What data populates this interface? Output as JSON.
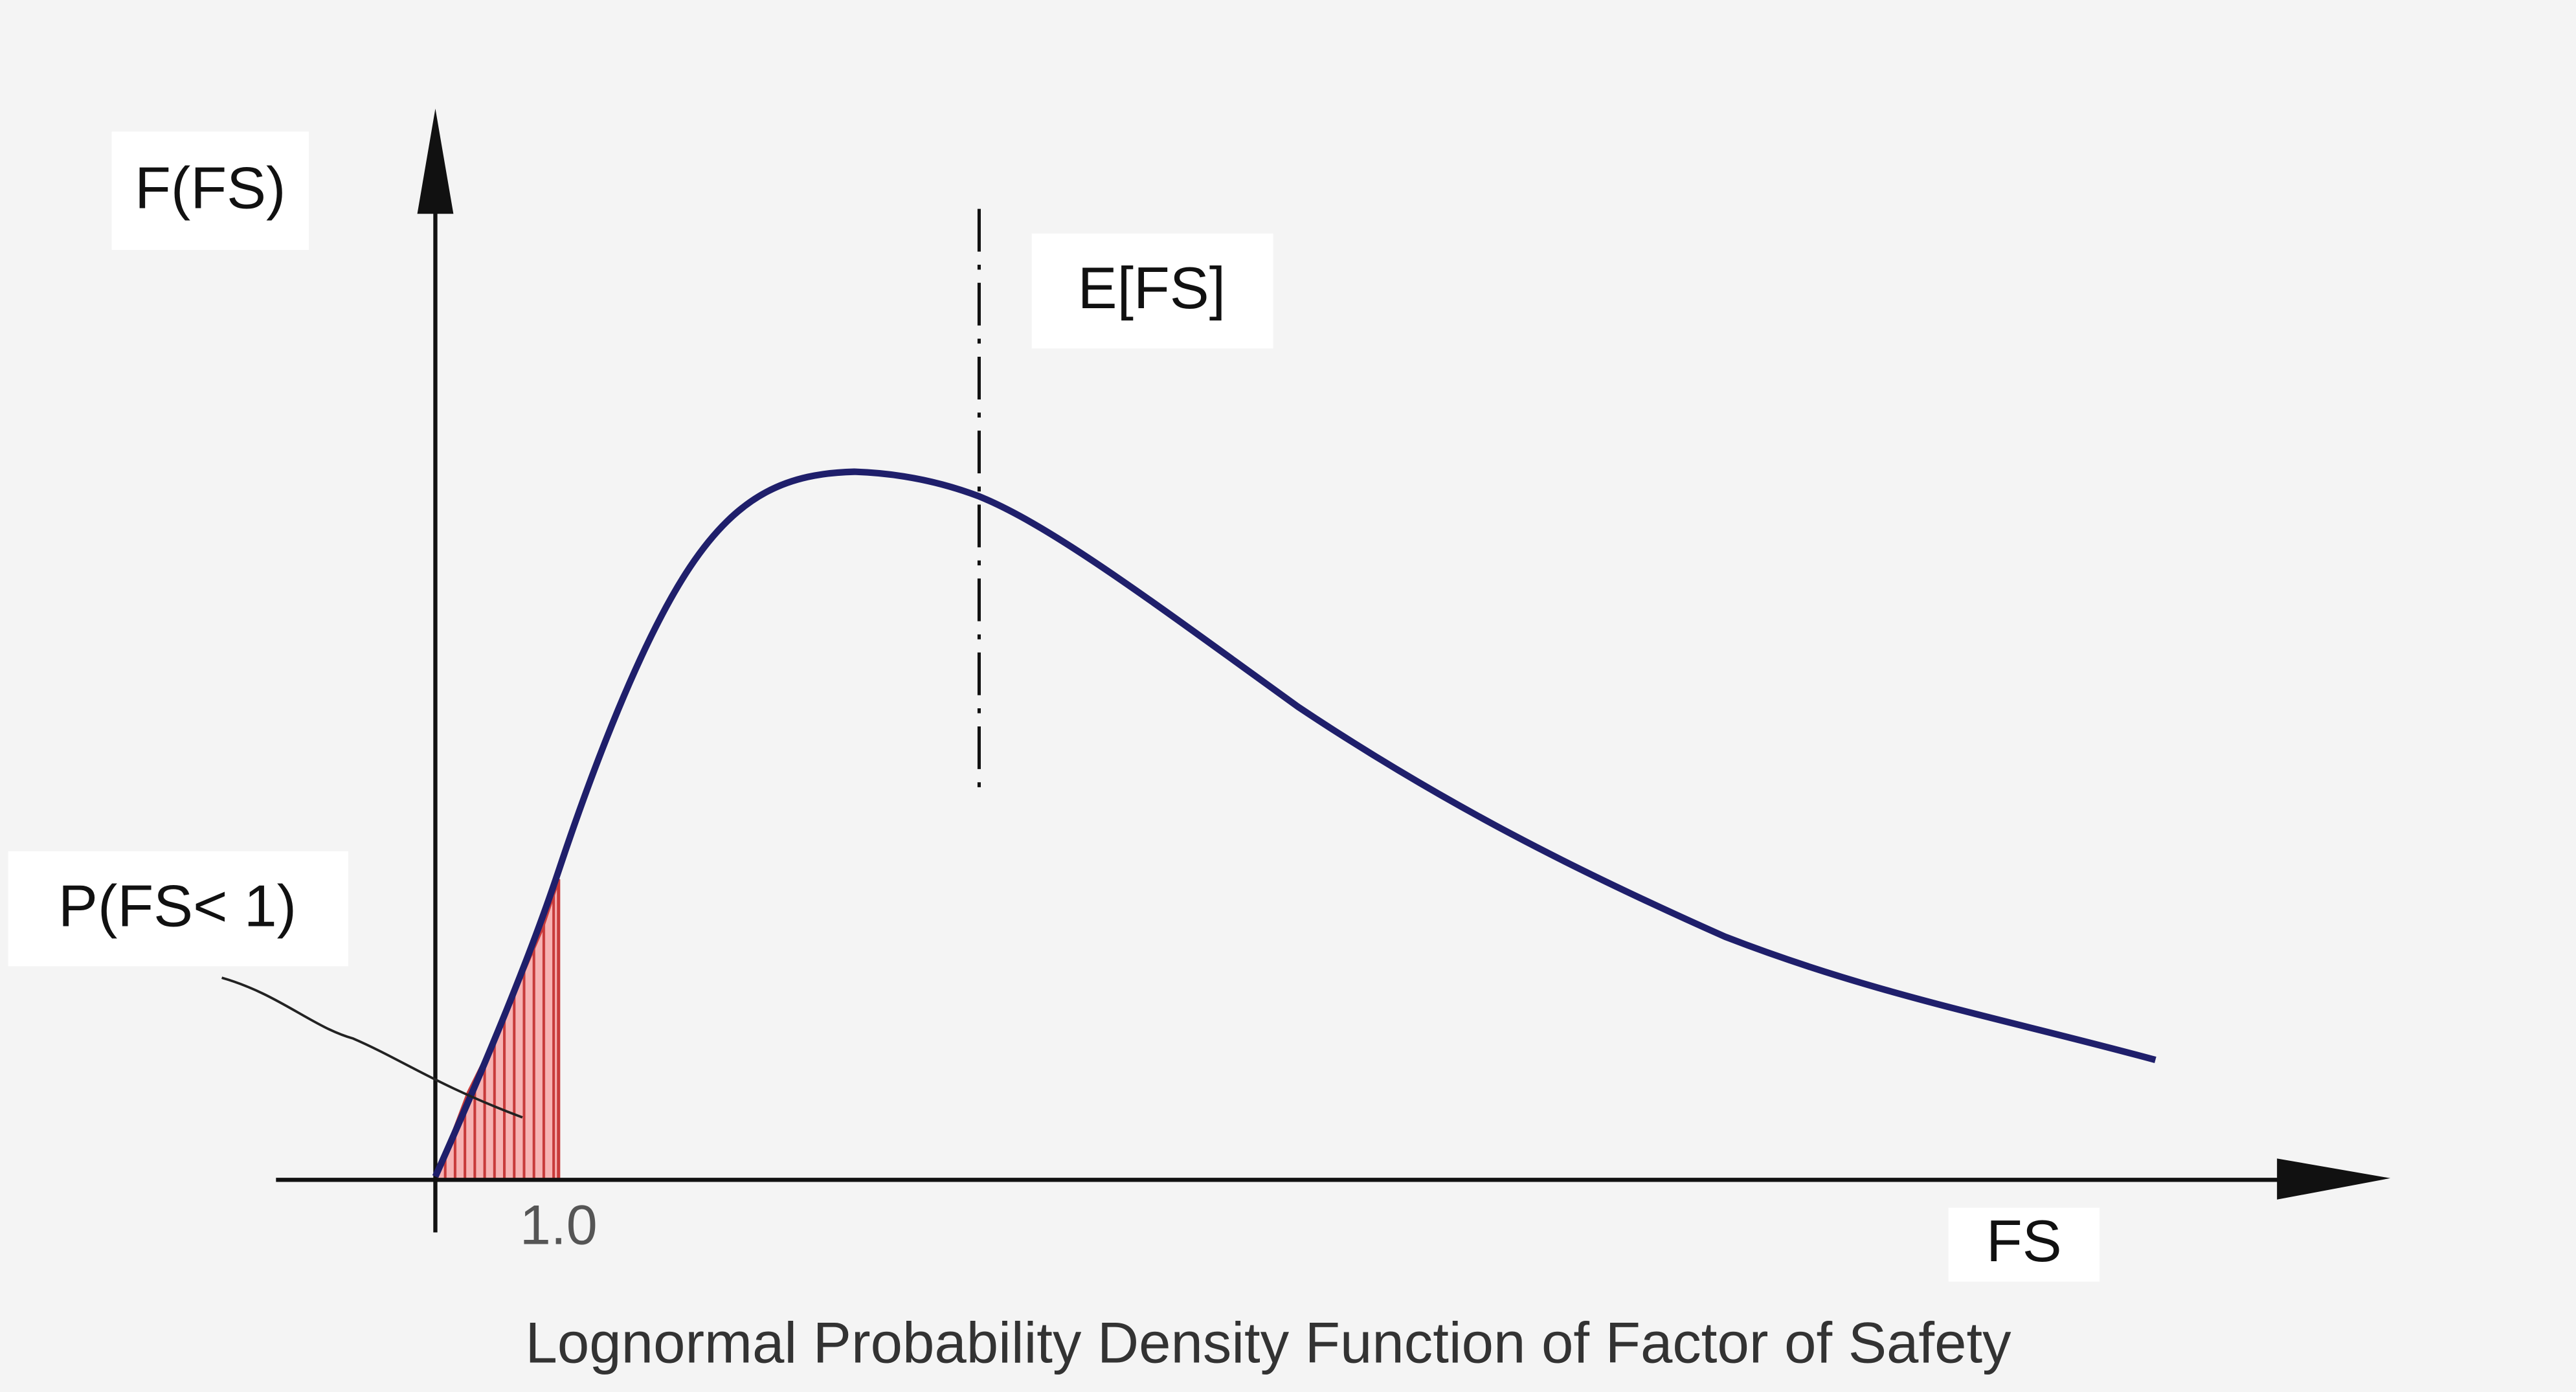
{
  "labels": {
    "y_axis": "F(FS)",
    "mean": "E[FS]",
    "probability": "P(FS< 1)",
    "tick": "1.0",
    "x_axis": "FS"
  },
  "caption": "Lognormal Probability Density Function of Factor of Safety"
}
